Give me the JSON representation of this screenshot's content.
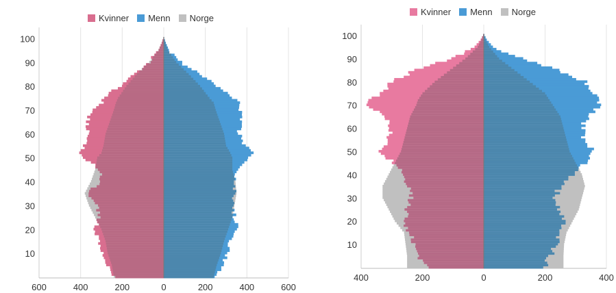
{
  "chart_data": [
    {
      "type": "population-pyramid",
      "legend": [
        {
          "name": "Kvinner",
          "color": "#d96e8f"
        },
        {
          "name": "Menn",
          "color": "#4a9bd6"
        },
        {
          "name": "Norge",
          "color": "#c0c0c0"
        }
      ],
      "x_ticks": [
        "600",
        "400",
        "200",
        "0",
        "200",
        "400",
        "600"
      ],
      "x_tick_values": [
        -600,
        -400,
        -200,
        0,
        200,
        400,
        600
      ],
      "xlim": [
        -600,
        600
      ],
      "y_ticks": [
        "10",
        "20",
        "30",
        "40",
        "50",
        "60",
        "70",
        "80",
        "90",
        "100"
      ],
      "y_tick_values": [
        10,
        20,
        30,
        40,
        50,
        60,
        70,
        80,
        90,
        100
      ],
      "ylim": [
        0,
        105
      ],
      "grid": "vertical",
      "legend_position": "top",
      "series_profile": {
        "age": [
          0,
          5,
          10,
          15,
          20,
          25,
          30,
          35,
          40,
          45,
          50,
          52,
          55,
          60,
          65,
          70,
          73,
          75,
          80,
          85,
          90,
          95,
          98,
          100
        ],
        "kvinner": [
          240,
          270,
          300,
          310,
          330,
          310,
          320,
          370,
          300,
          310,
          380,
          410,
          380,
          360,
          370,
          340,
          300,
          290,
          210,
          140,
          70,
          25,
          10,
          2
        ],
        "menn": [
          250,
          280,
          310,
          320,
          360,
          340,
          330,
          340,
          340,
          360,
          410,
          430,
          390,
          360,
          370,
          370,
          360,
          330,
          260,
          170,
          80,
          25,
          10,
          2
        ],
        "norge_women": [
          240,
          250,
          270,
          280,
          300,
          330,
          360,
          380,
          350,
          330,
          320,
          300,
          290,
          280,
          260,
          240,
          230,
          220,
          180,
          130,
          70,
          25,
          10,
          2
        ],
        "norge_men": [
          240,
          255,
          275,
          290,
          310,
          330,
          340,
          350,
          345,
          330,
          330,
          320,
          300,
          290,
          270,
          250,
          240,
          220,
          175,
          120,
          60,
          20,
          8,
          2
        ]
      }
    },
    {
      "type": "population-pyramid",
      "legend": [
        {
          "name": "Kvinner",
          "color": "#e87aa0"
        },
        {
          "name": "Menn",
          "color": "#4a9bd6"
        },
        {
          "name": "Norge",
          "color": "#c0c0c0"
        }
      ],
      "x_ticks": [
        "400",
        "200",
        "0",
        "200",
        "400"
      ],
      "x_tick_values": [
        -400,
        -200,
        0,
        200,
        400
      ],
      "xlim": [
        -400,
        400
      ],
      "y_ticks": [
        "10",
        "20",
        "30",
        "40",
        "50",
        "60",
        "70",
        "80",
        "90",
        "100"
      ],
      "y_tick_values": [
        10,
        20,
        30,
        40,
        50,
        60,
        70,
        80,
        90,
        100
      ],
      "ylim": [
        0,
        105
      ],
      "grid": "vertical",
      "legend_position": "top",
      "series_profile": {
        "age": [
          0,
          5,
          10,
          15,
          20,
          25,
          30,
          35,
          40,
          45,
          50,
          55,
          60,
          65,
          70,
          72,
          75,
          80,
          85,
          90,
          95,
          98,
          100
        ],
        "kvinner": [
          190,
          210,
          225,
          240,
          260,
          250,
          240,
          245,
          265,
          290,
          340,
          310,
          300,
          320,
          380,
          370,
          330,
          300,
          220,
          100,
          30,
          10,
          2
        ],
        "menn": [
          200,
          215,
          240,
          250,
          260,
          240,
          230,
          250,
          290,
          330,
          360,
          330,
          320,
          340,
          380,
          375,
          360,
          330,
          240,
          120,
          30,
          10,
          2
        ],
        "norge_women": [
          250,
          250,
          255,
          260,
          290,
          310,
          330,
          330,
          310,
          290,
          270,
          260,
          250,
          240,
          220,
          215,
          200,
          160,
          110,
          60,
          20,
          8,
          2
        ],
        "norge_men": [
          260,
          260,
          262,
          270,
          290,
          310,
          320,
          330,
          320,
          300,
          280,
          270,
          260,
          250,
          225,
          215,
          200,
          150,
          100,
          50,
          18,
          6,
          2
        ]
      }
    }
  ]
}
